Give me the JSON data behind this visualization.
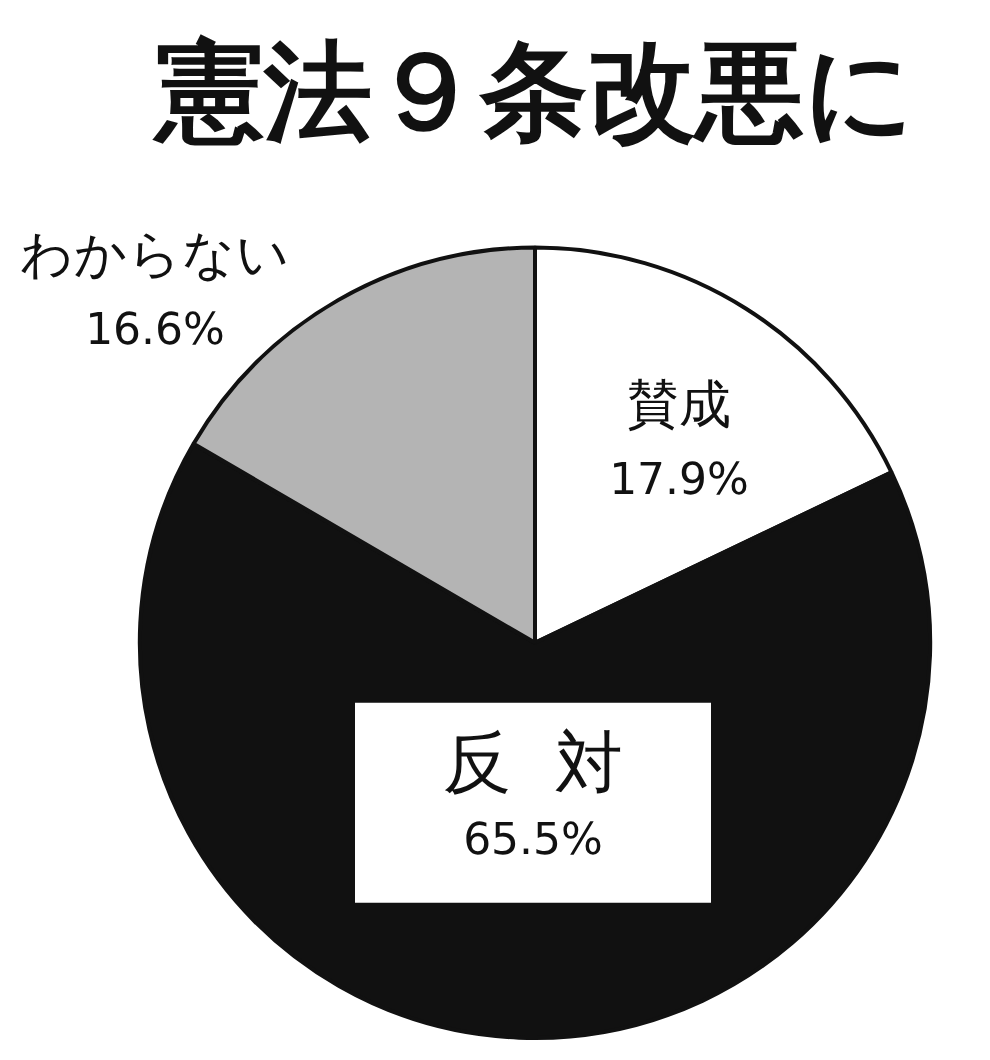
{
  "chart_data": {
    "type": "pie",
    "title": "憲法９条改悪に",
    "categories": [
      "賛成",
      "反対",
      "わからない"
    ],
    "values": [
      17.9,
      65.5,
      16.6
    ],
    "colors": [
      "#ffffff",
      "#111111",
      "#b4b4b4"
    ],
    "value_labels": [
      "17.9%",
      "65.5%",
      "16.6%"
    ],
    "legend": false
  }
}
